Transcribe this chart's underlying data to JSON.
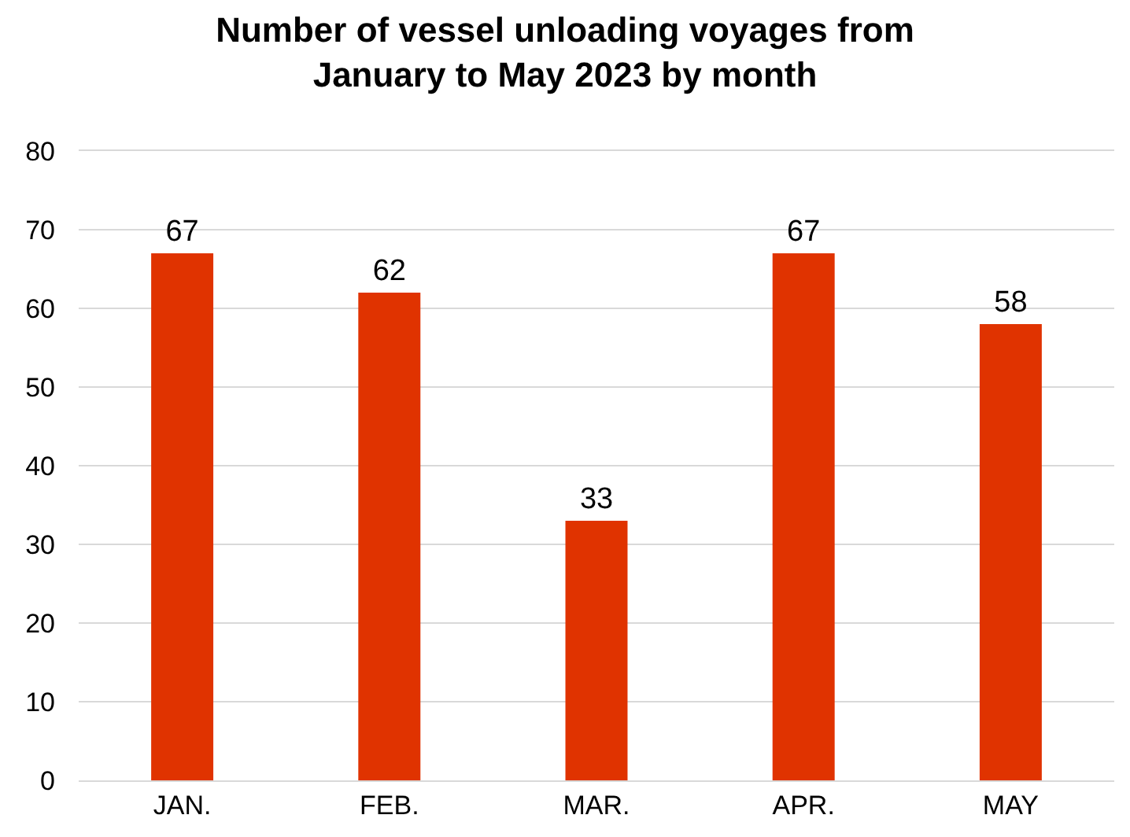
{
  "chart_data": {
    "type": "bar",
    "title": "Number of vessel unloading voyages from\nJanuary to May 2023 by month",
    "categories": [
      "JAN.",
      "FEB.",
      "MAR.",
      "APR.",
      "MAY"
    ],
    "values": [
      67,
      62,
      33,
      67,
      58
    ],
    "color": "#e03300",
    "ylim": [
      0,
      80
    ],
    "yticks": [
      0,
      10,
      20,
      30,
      40,
      50,
      60,
      70,
      80
    ],
    "grid": "y",
    "data_labels": true
  }
}
